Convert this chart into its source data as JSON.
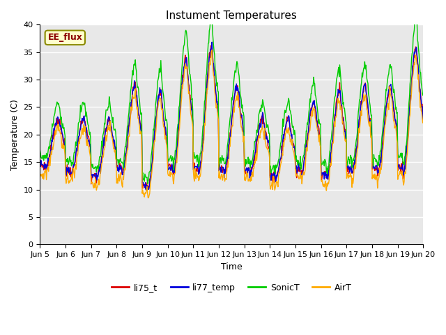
{
  "title": "Instument Temperatures",
  "xlabel": "Time",
  "ylabel": "Temperature (C)",
  "ylim": [
    0,
    40
  ],
  "yticks": [
    0,
    5,
    10,
    15,
    20,
    25,
    30,
    35,
    40
  ],
  "xtick_labels": [
    "Jun 5",
    "Jun 6",
    "Jun 7",
    "Jun 8",
    "Jun 9",
    "Jun 10",
    "Jun 11",
    "Jun 12",
    "Jun 13",
    "Jun 14",
    "Jun 15",
    "Jun 16",
    "Jun 17",
    "Jun 18",
    "Jun 19",
    "Jun 20"
  ],
  "annotation_text": "EE_flux",
  "series_colors": {
    "li75_t": "#dd0000",
    "li77_temp": "#0000dd",
    "SonicT": "#00cc00",
    "AirT": "#ffaa00"
  },
  "line_width": 1.0,
  "plot_bg_color": "#e8e8e8",
  "fig_bg_color": "#ffffff",
  "grid_color": "#ffffff",
  "title_fontsize": 11,
  "axis_fontsize": 9,
  "tick_fontsize": 8
}
